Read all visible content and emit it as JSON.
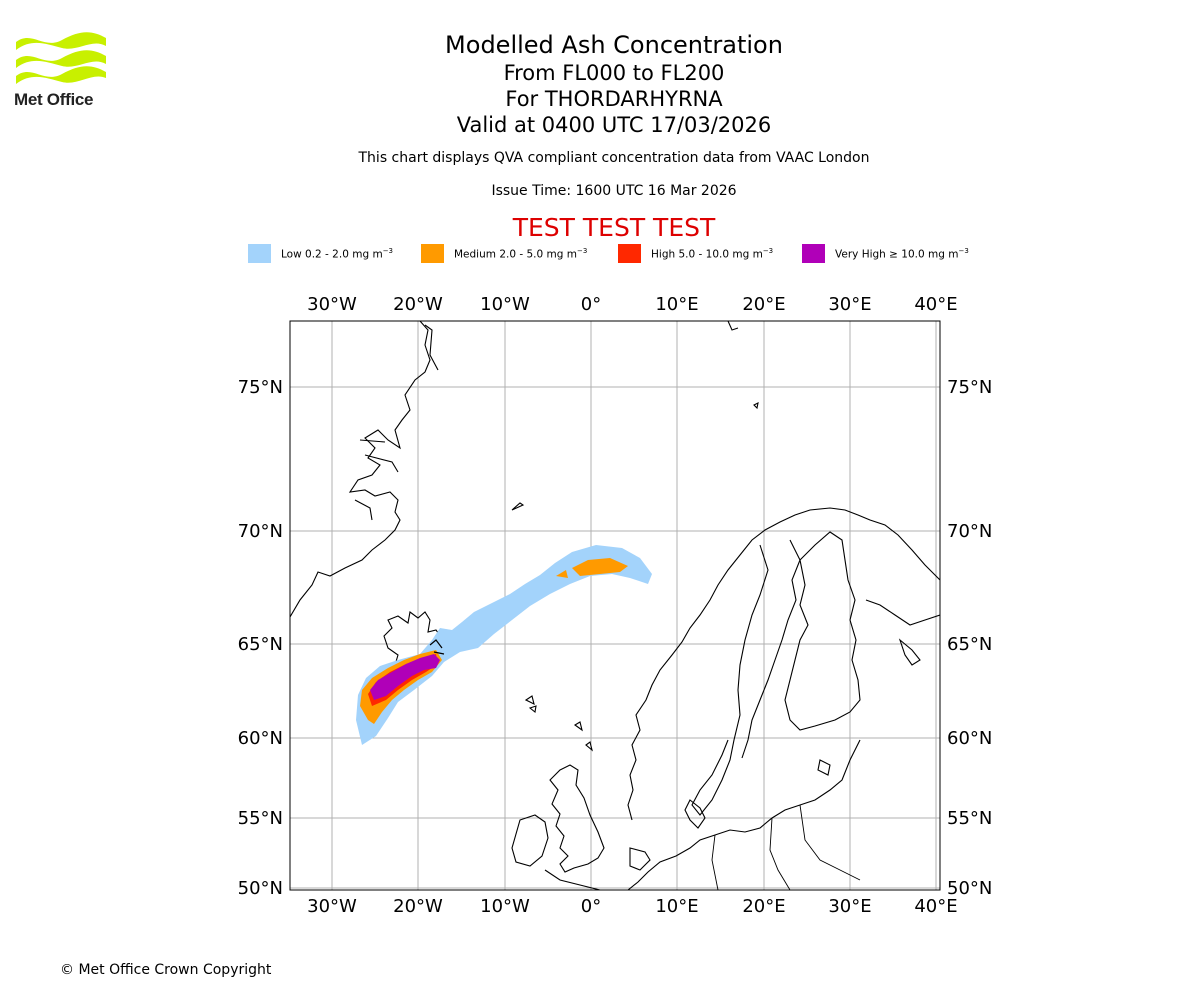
{
  "header": {
    "title": "Modelled Ash Concentration",
    "levels": "From FL000 to FL200",
    "volcano": "For THORDARHYRNA",
    "valid": "Valid at 0400 UTC 17/03/2026",
    "note": "This chart displays QVA compliant concentration data from VAAC London",
    "issue": "Issue Time: 1600 UTC 16 Mar 2026",
    "test_banner": "TEST TEST TEST"
  },
  "logo": {
    "name": "Met Office",
    "color": "#c8f000"
  },
  "legend": [
    {
      "label": "Low 0.2 - 2.0 mg m",
      "sup": "−3",
      "color": "#a3d3fb"
    },
    {
      "label": "Medium 2.0 - 5.0 mg m",
      "sup": "−3",
      "color": "#ff9a00"
    },
    {
      "label": "High 5.0 - 10.0 mg m",
      "sup": "−3",
      "color": "#ff2800"
    },
    {
      "label": "Very High  ≥  10.0 mg m",
      "sup": "−3",
      "color": "#b000b8"
    }
  ],
  "map": {
    "lon_ticks": [
      "30°W",
      "20°W",
      "10°W",
      "0°",
      "10°E",
      "20°E",
      "30°E",
      "40°E"
    ],
    "lat_ticks": [
      "75°N",
      "70°N",
      "65°N",
      "60°N",
      "55°N",
      "50°N"
    ]
  },
  "footer": {
    "copyright": "© Met Office Crown Copyright"
  }
}
